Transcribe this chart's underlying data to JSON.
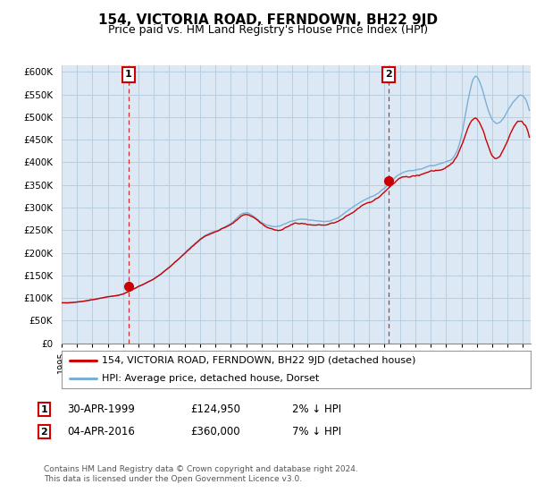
{
  "title": "154, VICTORIA ROAD, FERNDOWN, BH22 9JD",
  "subtitle": "Price paid vs. HM Land Registry's House Price Index (HPI)",
  "ylabel_ticks": [
    "£0",
    "£50K",
    "£100K",
    "£150K",
    "£200K",
    "£250K",
    "£300K",
    "£350K",
    "£400K",
    "£450K",
    "£500K",
    "£550K",
    "£600K"
  ],
  "ytick_values": [
    0,
    50000,
    100000,
    150000,
    200000,
    250000,
    300000,
    350000,
    400000,
    450000,
    500000,
    550000,
    600000
  ],
  "ylim": [
    0,
    615000
  ],
  "xlim_start": 1995.0,
  "xlim_end": 2025.5,
  "sale1_year": 1999.33,
  "sale1_price": 124950,
  "sale2_year": 2016.27,
  "sale2_price": 360000,
  "legend_line1": "154, VICTORIA ROAD, FERNDOWN, BH22 9JD (detached house)",
  "legend_line2": "HPI: Average price, detached house, Dorset",
  "footer": "Contains HM Land Registry data © Crown copyright and database right 2024.\nThis data is licensed under the Open Government Licence v3.0.",
  "line_color_red": "#cc0000",
  "line_color_blue": "#7bafd4",
  "chart_bg": "#dce9f5",
  "grid_color": "#b8cfe0",
  "bg_color": "#ffffff",
  "title_fontsize": 11,
  "subtitle_fontsize": 9
}
